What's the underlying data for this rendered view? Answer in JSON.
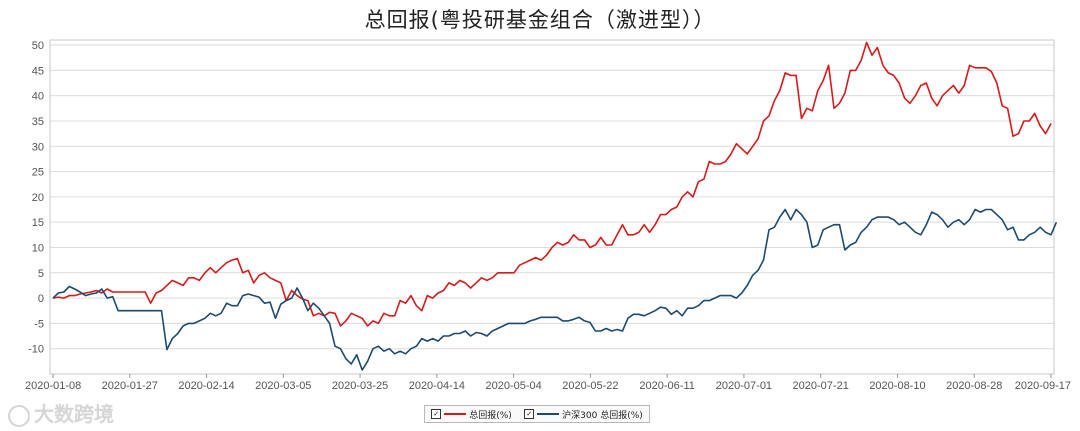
{
  "watermark": "大数跨境",
  "chart_data": {
    "type": "line",
    "title": "总回报(粤投研基金组合（激进型））",
    "ylim": [
      -15,
      51
    ],
    "yticks": [
      -10,
      -5,
      0,
      5,
      10,
      15,
      20,
      25,
      30,
      35,
      40,
      45,
      50
    ],
    "x_tick_labels": [
      "2020-01-08",
      "2020-01-27",
      "2020-02-14",
      "2020-03-05",
      "2020-03-25",
      "2020-04-14",
      "2020-05-04",
      "2020-05-22",
      "2020-06-11",
      "2020-07-01",
      "2020-07-21",
      "2020-08-10",
      "2020-08-28",
      "2020-09-17"
    ],
    "grid": true,
    "legend": "bottom-center",
    "series": [
      {
        "name": "总回报(%)",
        "color": "#d7191c",
        "values": [
          0,
          0.2,
          0,
          0.5,
          0.5,
          0.8,
          1,
          1.2,
          1.5,
          1,
          1.8,
          1.2,
          1.2,
          1.2,
          1.2,
          1.2,
          1.2,
          1.2,
          -1,
          1,
          1.5,
          2.5,
          3.5,
          3,
          2.5,
          4,
          4,
          3.5,
          5,
          6,
          5,
          6,
          7,
          7.5,
          7.8,
          5,
          5.5,
          3,
          4.5,
          5,
          4,
          3.5,
          3,
          -0.5,
          1.5,
          0.5,
          -0.2,
          -0.5,
          -3.5,
          -3,
          -3.5,
          -2.8,
          -3,
          -5.5,
          -4.5,
          -3,
          -3.5,
          -4,
          -5.5,
          -4.5,
          -5,
          -3,
          -3.5,
          -3.5,
          -0.5,
          -1,
          0.5,
          -1.5,
          -2.5,
          0.5,
          0,
          1,
          1.5,
          3,
          2.5,
          3.5,
          3,
          2,
          3,
          4,
          3.5,
          4,
          5,
          5,
          5,
          5,
          6.5,
          7,
          7.5,
          8,
          7.5,
          8.5,
          10,
          11,
          10.5,
          11,
          12.5,
          11.5,
          11.5,
          10,
          10.5,
          12,
          10.5,
          10.5,
          12.5,
          14.5,
          12.5,
          12.5,
          13,
          14.5,
          13,
          14.5,
          16.5,
          16.5,
          17.5,
          18,
          20,
          21,
          20,
          23,
          23.5,
          27,
          26.5,
          26.5,
          27,
          28.5,
          30.5,
          29.5,
          28.5,
          30,
          31.5,
          35,
          36,
          39,
          41,
          44.5,
          44,
          44,
          35.5,
          37.5,
          37,
          41,
          43,
          46,
          37.5,
          38.5,
          40.5,
          45,
          45,
          47,
          50.5,
          48,
          49.5,
          46,
          44.5,
          44,
          42.5,
          39.5,
          38.5,
          40,
          42,
          42.5,
          39.5,
          38,
          40,
          41,
          42,
          40.5,
          42,
          46,
          45.5,
          45.5,
          45.5,
          44.8,
          42.5,
          38,
          37.5,
          32,
          32.5,
          35,
          35,
          36.5,
          34,
          32.5,
          34.5
        ]
      },
      {
        "name": "沪深300 总回报(%)",
        "color": "#1d4a6e",
        "values": [
          0,
          1,
          1.2,
          2.3,
          1.8,
          1.2,
          0.5,
          0.8,
          1,
          1.8,
          0,
          0.3,
          -2.5,
          -2.5,
          -2.5,
          -2.5,
          -2.5,
          -2.5,
          -2.5,
          -2.5,
          -2.5,
          -10.2,
          -8,
          -7,
          -5.5,
          -5,
          -5,
          -4.5,
          -4,
          -3,
          -3.5,
          -3,
          -1,
          -1.5,
          -1.5,
          0.5,
          0.8,
          0.5,
          0.2,
          -1,
          -0.8,
          -4,
          -1.2,
          -0.5,
          0,
          2,
          0,
          -2.5,
          -1,
          -2,
          -3.5,
          -5,
          -9.5,
          -10,
          -12,
          -13,
          -11.2,
          -14.2,
          -12.5,
          -10,
          -9.5,
          -10.5,
          -10,
          -11,
          -10.5,
          -11,
          -10,
          -9.5,
          -8,
          -8.5,
          -8,
          -8.5,
          -7.5,
          -7.5,
          -7,
          -7,
          -6.5,
          -7.5,
          -6.8,
          -7,
          -7.5,
          -6.5,
          -6,
          -5.5,
          -5,
          -5,
          -5,
          -5,
          -4.5,
          -4.2,
          -3.8,
          -3.8,
          -3.8,
          -3.8,
          -4.5,
          -4.5,
          -4.2,
          -3.8,
          -4.5,
          -4.8,
          -6.5,
          -6.5,
          -6,
          -6.5,
          -6.2,
          -6.5,
          -4,
          -3.2,
          -3.2,
          -3.5,
          -3,
          -2.5,
          -1.8,
          -2,
          -3.2,
          -2.5,
          -3.5,
          -2,
          -2,
          -1.5,
          -0.5,
          -0.5,
          0,
          0.5,
          0.5,
          0.5,
          0,
          1,
          2.5,
          4.5,
          5.5,
          7.5,
          13.5,
          14,
          16,
          17.5,
          15.5,
          17.5,
          16.5,
          15,
          10,
          10.5,
          13.5,
          14,
          14.5,
          14.5,
          9.5,
          10.5,
          11,
          13,
          14,
          15.5,
          16,
          16,
          16,
          15.5,
          14.5,
          15,
          14,
          13,
          12.5,
          14.5,
          17,
          16.5,
          15.5,
          14,
          15,
          15.5,
          14.5,
          15.5,
          17.5,
          17,
          17.5,
          17.5,
          16.5,
          15.5,
          13.5,
          14,
          11.5,
          11.5,
          12.5,
          13,
          14,
          13,
          12.5,
          15
        ]
      }
    ]
  }
}
